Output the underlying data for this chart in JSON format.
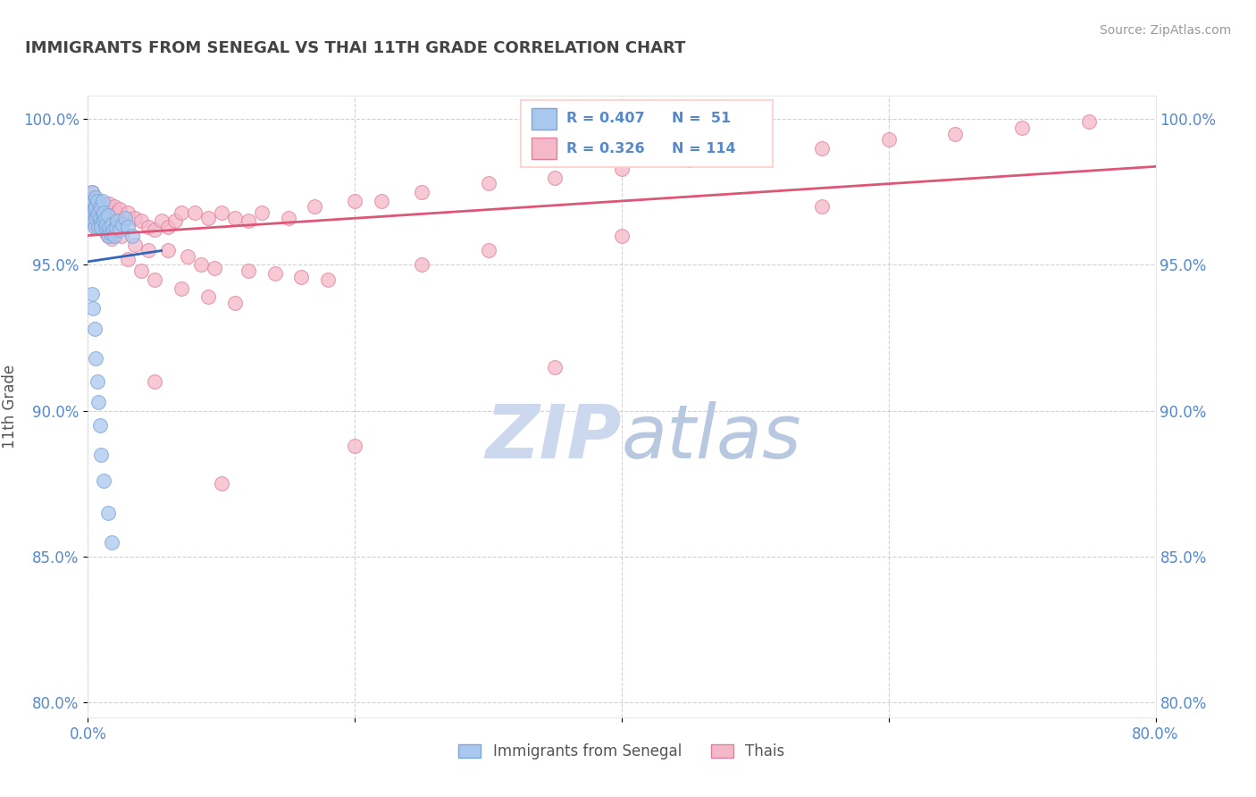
{
  "title": "IMMIGRANTS FROM SENEGAL VS THAI 11TH GRADE CORRELATION CHART",
  "source_text": "Source: ZipAtlas.com",
  "ylabel": "11th Grade",
  "xlim": [
    0.0,
    0.8
  ],
  "ylim": [
    0.795,
    1.008
  ],
  "xticks": [
    0.0,
    0.2,
    0.4,
    0.6,
    0.8
  ],
  "xtick_labels": [
    "0.0%",
    "",
    "",
    "",
    "80.0%"
  ],
  "ytick_labels": [
    "80.0%",
    "85.0%",
    "90.0%",
    "95.0%",
    "100.0%"
  ],
  "yticks": [
    0.8,
    0.85,
    0.9,
    0.95,
    1.0
  ],
  "senegal_color": "#aac8ee",
  "thai_color": "#f5b8c8",
  "senegal_edge": "#7aa8d8",
  "thai_edge": "#e080a0",
  "trend_senegal_color": "#3366bb",
  "trend_thai_color": "#dd5577",
  "background_color": "#ffffff",
  "grid_color": "#cccccc",
  "watermark_color": "#ccd8ee",
  "title_color": "#444444",
  "axis_color": "#5588cc",
  "source_color": "#999999"
}
